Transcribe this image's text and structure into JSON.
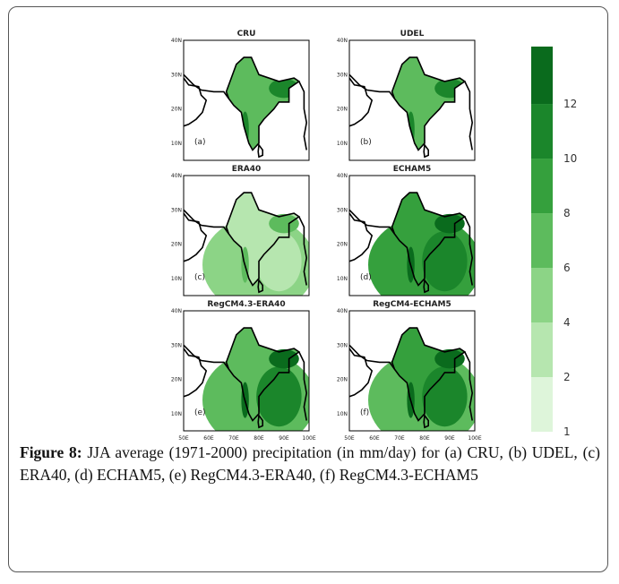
{
  "figure": {
    "panels": [
      {
        "title": "CRU",
        "letter": "(a)"
      },
      {
        "title": "UDEL",
        "letter": "(b)"
      },
      {
        "title": "ERA40",
        "letter": "(c)"
      },
      {
        "title": "ECHAM5",
        "letter": "(d)"
      },
      {
        "title": "RegCM4.3-ERA40",
        "letter": "(e)"
      },
      {
        "title": "RegCM4-ECHAM5",
        "letter": "(f)"
      }
    ],
    "lat_labels": [
      "40N",
      "30N",
      "20N",
      "10N"
    ],
    "lon_labels": [
      "50E",
      "60E",
      "70E",
      "80E",
      "90E",
      "100E"
    ],
    "colorbar": {
      "levels": [
        1,
        2,
        4,
        6,
        8,
        10,
        12
      ],
      "colors": [
        "#def5da",
        "#b6e6af",
        "#8cd486",
        "#5dbb5d",
        "#35a03d",
        "#1b862b",
        "#0a6b1d"
      ]
    },
    "caption": {
      "label": "Figure 8:",
      "text": "JJA average (1971-2000) precipitation (in mm/day) for (a) CRU, (b) UDEL, (c) ERA40, (d) ECHAM5, (e) RegCM4.3-ERA40, (f) RegCM4.3-ECHAM5"
    }
  }
}
